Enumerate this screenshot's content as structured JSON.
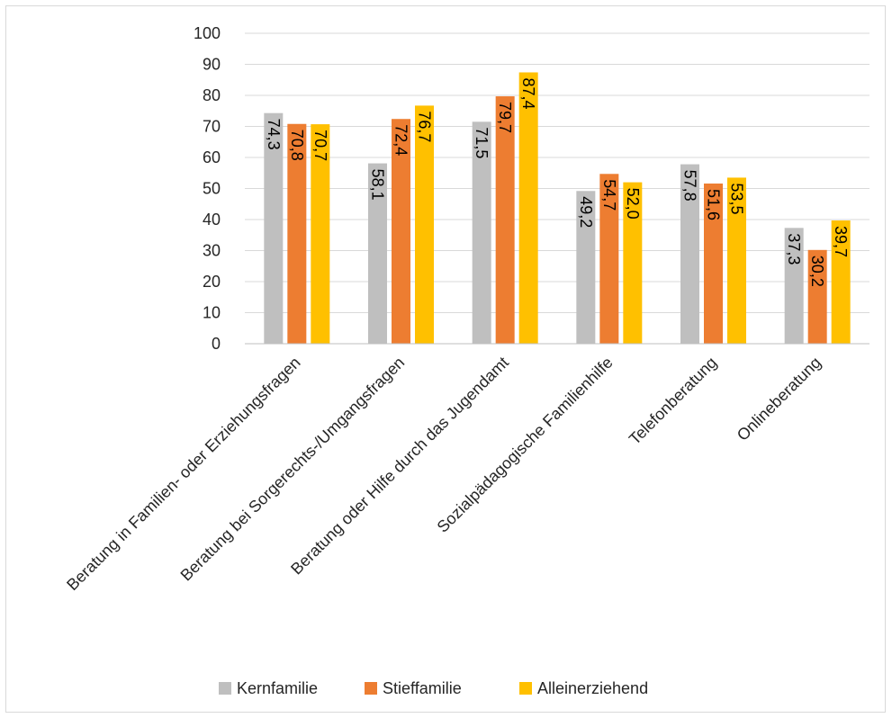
{
  "chart_data": {
    "type": "bar",
    "categories": [
      "Beratung in Familien- oder Erziehungsfragen",
      "Beratung bei Sorgerechts-/Umgangsfragen",
      "Beratung oder Hilfe durch das Jugendamt",
      "Sozialpädagogische Familienhilfe",
      "Telefonberatung",
      "Onlineberatung"
    ],
    "series": [
      {
        "name": "Kernfamilie",
        "color": "#bfbfbf",
        "values": [
          74.3,
          58.1,
          71.5,
          49.2,
          57.8,
          37.3
        ],
        "labels": [
          "74,3",
          "58,1",
          "71,5",
          "49,2",
          "57,8",
          "37,3"
        ]
      },
      {
        "name": "Stieffamilie",
        "color": "#ed7d31",
        "values": [
          70.8,
          72.4,
          79.7,
          54.7,
          51.6,
          30.2
        ],
        "labels": [
          "70,8",
          "72,4",
          "79,7",
          "54,7",
          "51,6",
          "30,2"
        ]
      },
      {
        "name": "Alleinerziehend",
        "color": "#ffc000",
        "values": [
          70.7,
          76.7,
          87.4,
          52.0,
          53.5,
          39.7
        ],
        "labels": [
          "70,7",
          "76,7",
          "87,4",
          "52,0",
          "53,5",
          "39,7"
        ]
      }
    ],
    "ylim": [
      0,
      100
    ],
    "yticks": [
      "0",
      "10",
      "20",
      "30",
      "40",
      "50",
      "60",
      "70",
      "80",
      "90",
      "100"
    ],
    "grid": true,
    "legend_position": "bottom",
    "data_labels": "inside-rotated"
  }
}
